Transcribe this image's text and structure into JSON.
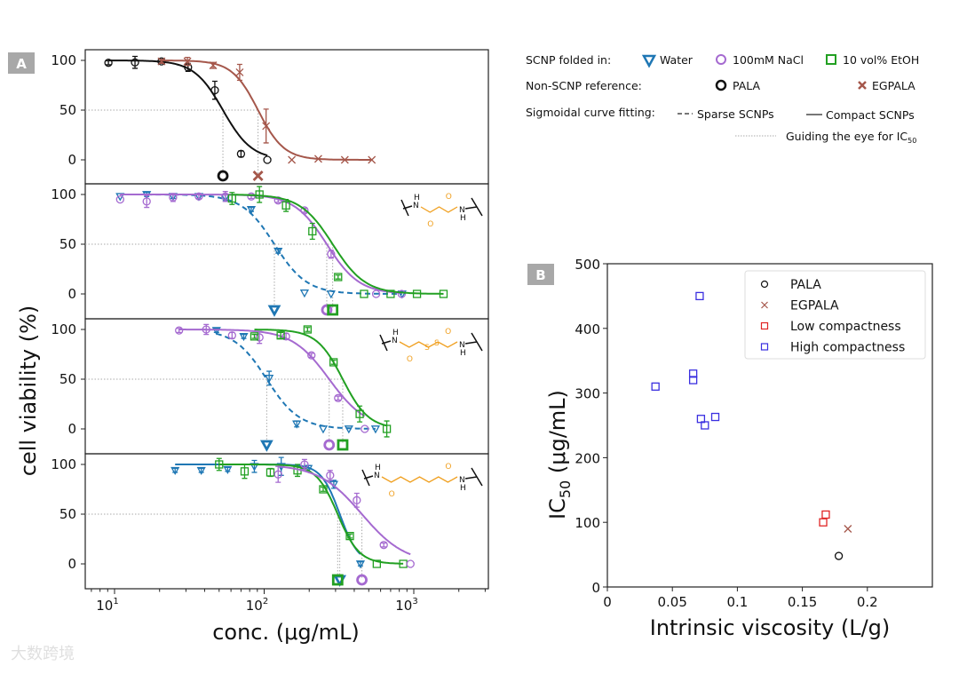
{
  "panel_labels": {
    "a": "A",
    "b": "B"
  },
  "legend": {
    "row1_title": "SCNP folded in:",
    "water": "Water",
    "nacl": "100mM NaCl",
    "etoh": "10 vol% EtOH",
    "row2_title": "Non-SCNP reference:",
    "pala": "PALA",
    "egpala": "EGPALA",
    "row3_title": "Sigmoidal curve fitting:",
    "sparse": "Sparse SCNPs",
    "compact": "Compact SCNPs",
    "guide": "Guiding the eye for IC",
    "guide_sub": "50"
  },
  "colors": {
    "water": "#1f77b4",
    "nacl": "#a56ad0",
    "etoh": "#22a022",
    "pala": "#111111",
    "egpala": "#a5574b",
    "low": "#e02525",
    "high": "#3a2fe0"
  },
  "structure_atoms": {
    "n": "N",
    "h": "H",
    "o": "O",
    "s": "S"
  },
  "watermark": "大数跨境",
  "chart_data": [
    {
      "type": "scatter",
      "title": "A",
      "xlabel": "conc. (μg/mL)",
      "ylabel": "cell viability (%)",
      "xscale": "log",
      "xlim": [
        6.4,
        3160
      ],
      "ylim": [
        -24,
        111
      ],
      "xticks": [
        "10",
        "10",
        "10"
      ],
      "xtick_exp": [
        "1",
        "2",
        "3"
      ],
      "xtick_values": [
        10,
        100,
        1000
      ],
      "yticks": [
        "0",
        "50",
        "100"
      ],
      "ytick_values": [
        0,
        50,
        100
      ],
      "subplots": [
        {
          "series": [
            {
              "name": "PALA",
              "color_key": "pala",
              "marker": "circle",
              "fit": "solid",
              "ic50": 53,
              "hill": 4.5,
              "points": [
                [
                  9.1,
                  97.6,
                  2
                ],
                [
                  13.7,
                  98,
                  6
                ],
                [
                  20.6,
                  99,
                  2
                ],
                [
                  31,
                  93,
                  4
                ],
                [
                  46.8,
                  70,
                  9
                ],
                [
                  70,
                  6,
                  3
                ],
                [
                  105,
                  0,
                  1
                ]
              ]
            },
            {
              "name": "EGPALA",
              "color_key": "egpala",
              "marker": "x",
              "fit": "solid",
              "ic50": 91,
              "hill": 5,
              "points": [
                [
                  20.6,
                  99,
                  2
                ],
                [
                  30.7,
                  99,
                  4
                ],
                [
                  45.6,
                  95,
                  3
                ],
                [
                  68.6,
                  88,
                  8
                ],
                [
                  103,
                  34,
                  17
                ],
                [
                  153,
                  0,
                  1
                ],
                [
                  230,
                  1,
                  1
                ],
                [
                  346,
                  0,
                  1
                ],
                [
                  524,
                  0,
                  1
                ]
              ]
            }
          ]
        },
        {
          "structure": "succinyl",
          "series": [
            {
              "name": "Water",
              "color_key": "water",
              "marker": "tri",
              "fit": "dashed",
              "ic50": 117,
              "hill": 4,
              "points": [
                [
                  10.9,
                  98,
                  1
                ],
                [
                  16.4,
                  100,
                  2
                ],
                [
                  24.6,
                  98,
                  2
                ],
                [
                  36.6,
                  98,
                  1
                ],
                [
                  55,
                  97,
                  3
                ],
                [
                  82,
                  85,
                  2
                ],
                [
                  124,
                  43,
                  2
                ],
                [
                  186,
                  1,
                  1
                ],
                [
                  280,
                  0,
                  1
                ],
                [
                  835,
                  0,
                  1
                ]
              ]
            },
            {
              "name": "100mM NaCl",
              "color_key": "nacl",
              "marker": "circle",
              "fit": "solid",
              "ic50": 262,
              "hill": 4,
              "points": [
                [
                  10.9,
                  95,
                  1
                ],
                [
                  16.4,
                  93,
                  6
                ],
                [
                  24.6,
                  97,
                  4
                ],
                [
                  36.6,
                  98,
                  2
                ],
                [
                  55,
                  98,
                  5
                ],
                [
                  82,
                  98,
                  2
                ],
                [
                  124,
                  94,
                  2
                ],
                [
                  186,
                  84,
                  2
                ],
                [
                  280,
                  40,
                  4
                ],
                [
                  560,
                  0,
                  1
                ],
                [
                  830,
                  0,
                  1
                ]
              ]
            },
            {
              "name": "10 vol% EtOH",
              "color_key": "etoh",
              "marker": "square",
              "fit": "solid",
              "ic50": 287,
              "hill": 4,
              "points": [
                [
                  61,
                  96,
                  6
                ],
                [
                  93,
                  100,
                  8
                ],
                [
                  140,
                  89,
                  6
                ],
                [
                  210,
                  63,
                  8
                ],
                [
                  312,
                  17,
                  2
                ],
                [
                  465,
                  0,
                  1
                ],
                [
                  700,
                  0,
                  1
                ],
                [
                  1050,
                  0,
                  1
                ],
                [
                  1580,
                  0,
                  1
                ]
              ]
            }
          ]
        },
        {
          "structure": "dithiodiglycolyl",
          "series": [
            {
              "name": "Water",
              "color_key": "water",
              "marker": "tri",
              "fit": "dashed",
              "ic50": 104,
              "hill": 4,
              "points": [
                [
                  48,
                  99,
                  2
                ],
                [
                  73,
                  93,
                  2
                ],
                [
                  108,
                  51,
                  7
                ],
                [
                  165,
                  5,
                  3
                ],
                [
                  248,
                  0,
                  1
                ],
                [
                  368,
                  0,
                  1
                ],
                [
                  555,
                  0,
                  1
                ]
              ]
            },
            {
              "name": "100mM NaCl",
              "color_key": "nacl",
              "marker": "circle",
              "fit": "solid",
              "ic50": 272,
              "hill": 3.5,
              "points": [
                [
                  27,
                  99,
                  2
                ],
                [
                  41,
                  100,
                  5
                ],
                [
                  61,
                  94,
                  3
                ],
                [
                  93,
                  92,
                  6
                ],
                [
                  140,
                  93,
                  3
                ],
                [
                  207,
                  74,
                  2
                ],
                [
                  312,
                  31,
                  2
                ],
                [
                  470,
                  0,
                  1
                ]
              ]
            },
            {
              "name": "10 vol% EtOH",
              "color_key": "etoh",
              "marker": "square",
              "fit": "solid",
              "ic50": 335,
              "hill": 5,
              "points": [
                [
                  86,
                  93,
                  2
                ],
                [
                  129,
                  94,
                  3
                ],
                [
                  195,
                  100,
                  2
                ],
                [
                  291,
                  67,
                  2
                ],
                [
                  435,
                  15,
                  8
                ],
                [
                  660,
                  0,
                  8
                ]
              ]
            }
          ]
        },
        {
          "structure": "suberoyl",
          "series": [
            {
              "name": "Water",
              "color_key": "water",
              "marker": "tri",
              "fit": "solid",
              "ic50": 320,
              "hill": 7,
              "points": [
                [
                  25.4,
                  94,
                  2
                ],
                [
                  38,
                  94,
                  2
                ],
                [
                  57,
                  95,
                  2
                ],
                [
                  86,
                  98,
                  6
                ],
                [
                  130,
                  98,
                  9
                ],
                [
                  197,
                  96,
                  3
                ],
                [
                  292,
                  80,
                  4
                ],
                [
                  440,
                  0,
                  2
                ]
              ]
            },
            {
              "name": "10 vol% EtOH",
              "color_key": "etoh",
              "marker": "square",
              "fit": "solid",
              "ic50": 310,
              "hill": 6,
              "points": [
                [
                  50,
                  100,
                  6
                ],
                [
                  74,
                  93,
                  7
                ],
                [
                  110,
                  92,
                  4
                ],
                [
                  167,
                  94,
                  6
                ],
                [
                  248,
                  75,
                  2
                ],
                [
                  374,
                  28,
                  2
                ],
                [
                  566,
                  0,
                  1
                ],
                [
                  850,
                  0,
                  1
                ]
              ]
            },
            {
              "name": "100mM NaCl",
              "color_key": "nacl",
              "marker": "circle",
              "fit": "solid",
              "ic50": 450,
              "hill": 3,
              "points": [
                [
                  124,
                  90,
                  8
                ],
                [
                  186,
                  100,
                  5
                ],
                [
                  276,
                  89,
                  5
                ],
                [
                  416,
                  64,
                  7
                ],
                [
                  630,
                  19,
                  2
                ],
                [
                  950,
                  0,
                  1
                ]
              ]
            }
          ]
        }
      ]
    },
    {
      "type": "scatter",
      "title": "B",
      "xlabel": "Intrinsic viscosity (L/g)",
      "ylabel": "IC",
      "ylabel_sub": "50",
      "ylabel_unit": " (μg/mL)",
      "xlim": [
        0,
        0.25
      ],
      "ylim": [
        0,
        500
      ],
      "xticks": [
        "0",
        "0.05",
        "0.1",
        "0.15",
        "0.2"
      ],
      "xtick_values": [
        0,
        0.05,
        0.1,
        0.15,
        0.2
      ],
      "yticks": [
        "0",
        "100",
        "200",
        "300",
        "400",
        "500"
      ],
      "ytick_values": [
        0,
        100,
        200,
        300,
        400,
        500
      ],
      "legend_position": "upper-right",
      "series": [
        {
          "name": "PALA",
          "color_key": "pala",
          "marker": "circle",
          "points": [
            [
              0.178,
              48
            ]
          ]
        },
        {
          "name": "EGPALA",
          "color_key": "egpala",
          "marker": "x",
          "points": [
            [
              0.185,
              90
            ]
          ]
        },
        {
          "name": "Low compactness",
          "color_key": "low",
          "marker": "square",
          "points": [
            [
              0.166,
              100
            ],
            [
              0.168,
              112
            ]
          ]
        },
        {
          "name": "High compactness",
          "color_key": "high",
          "marker": "square",
          "points": [
            [
              0.037,
              310
            ],
            [
              0.066,
              330
            ],
            [
              0.066,
              320
            ],
            [
              0.071,
              450
            ],
            [
              0.072,
              260
            ],
            [
              0.075,
              250
            ],
            [
              0.083,
              263
            ]
          ]
        }
      ]
    }
  ]
}
